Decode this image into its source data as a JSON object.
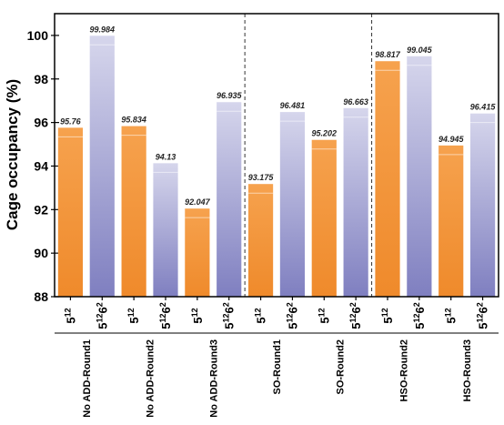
{
  "chart_data": {
    "type": "bar",
    "title": "",
    "ylabel": "Cage occupancy (%)",
    "xlabel": "",
    "ylim": [
      88,
      101
    ],
    "yticks": [
      "88",
      "90",
      "92",
      "94",
      "96",
      "98",
      "100"
    ],
    "groups": [
      {
        "name": "No ADD-Round1",
        "bars": [
          {
            "cage": "5^12",
            "value": 95.76,
            "label": "95.76",
            "color": "orange"
          },
          {
            "cage": "5^12 6^2",
            "value": 99.984,
            "label": "99.984",
            "color": "purple"
          }
        ]
      },
      {
        "name": "No ADD-Round2",
        "bars": [
          {
            "cage": "5^12",
            "value": 95.834,
            "label": "95.834",
            "color": "orange"
          },
          {
            "cage": "5^12 6^2",
            "value": 94.13,
            "label": "94.13",
            "color": "purple"
          }
        ]
      },
      {
        "name": "No ADD-Round3",
        "bars": [
          {
            "cage": "5^12",
            "value": 92.047,
            "label": "92.047",
            "color": "orange"
          },
          {
            "cage": "5^12 6^2",
            "value": 96.935,
            "label": "96.935",
            "color": "purple"
          }
        ]
      },
      {
        "name": "SO-Round1",
        "bars": [
          {
            "cage": "5^12",
            "value": 93.175,
            "label": "93.175",
            "color": "orange"
          },
          {
            "cage": "5^12 6^2",
            "value": 96.481,
            "label": "96.481",
            "color": "purple"
          }
        ]
      },
      {
        "name": "SO-Round2",
        "bars": [
          {
            "cage": "5^12",
            "value": 95.202,
            "label": "95.202",
            "color": "orange"
          },
          {
            "cage": "5^12 6^2",
            "value": 96.663,
            "label": "96.663",
            "color": "purple"
          }
        ]
      },
      {
        "name": "HSO-Round2",
        "bars": [
          {
            "cage": "5^12",
            "value": 98.817,
            "label": "98.817",
            "color": "orange"
          },
          {
            "cage": "5^12 6^2",
            "value": 99.045,
            "label": "99.045",
            "color": "purple"
          }
        ]
      },
      {
        "name": "HSO-Round3",
        "bars": [
          {
            "cage": "5^12",
            "value": 94.945,
            "label": "94.945",
            "color": "orange"
          },
          {
            "cage": "5^12 6^2",
            "value": 96.415,
            "label": "96.415",
            "color": "purple"
          }
        ]
      }
    ],
    "separators_after_group": [
      2,
      4
    ],
    "cage_labels": {
      "small": {
        "base": "5",
        "exp": "12"
      },
      "large": {
        "base1": "5",
        "exp1": "12",
        "base2": "6",
        "exp2": "2"
      }
    },
    "colors": {
      "orange_top": "#f6a24e",
      "orange_bottom": "#ef8a2b",
      "purple_top": "#d6d6ec",
      "purple_bottom": "#7f7fc0",
      "separator": "#333333"
    },
    "grid": false,
    "legend": "none"
  }
}
